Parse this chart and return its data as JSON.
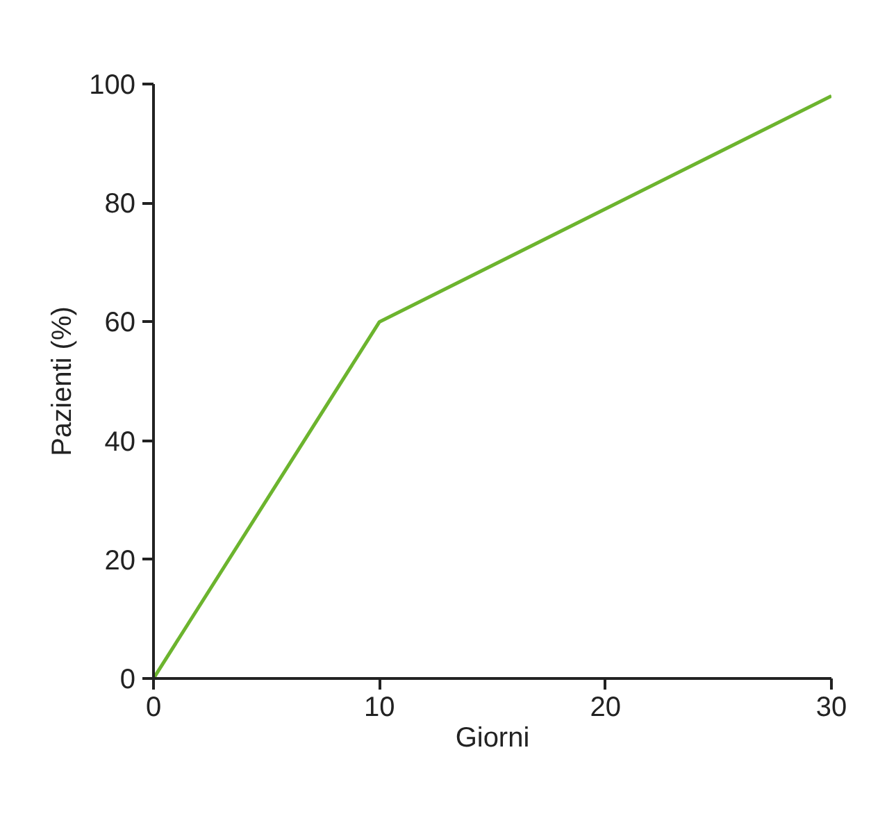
{
  "chart_data": {
    "type": "line",
    "xlabel": "Giorni",
    "ylabel": "Pazienti (%)",
    "x": [
      0,
      10,
      30
    ],
    "series": [
      {
        "color": "#6cb42e",
        "values": [
          0,
          60,
          98
        ]
      }
    ],
    "xlim": [
      0,
      30
    ],
    "ylim": [
      0,
      100
    ],
    "xticks": [
      0,
      10,
      20,
      30
    ],
    "yticks": [
      0,
      20,
      40,
      60,
      80,
      100
    ],
    "grid": false,
    "marker": "none",
    "line_style": "solid"
  }
}
